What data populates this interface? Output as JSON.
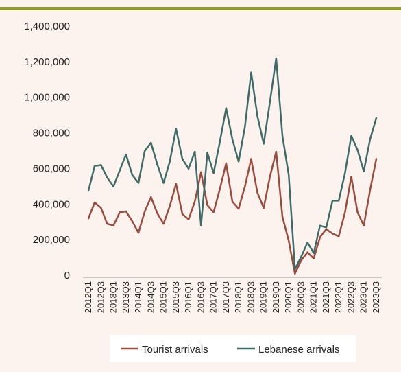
{
  "chart_data": {
    "type": "line",
    "title": "",
    "xlabel": "",
    "ylabel": "",
    "ylim": [
      0,
      1400000
    ],
    "yticks": [
      0,
      200000,
      400000,
      600000,
      800000,
      1000000,
      1200000,
      1400000
    ],
    "ytick_labels": [
      "0",
      "200,000",
      "400,000",
      "600,000",
      "800,000",
      "1,000,000",
      "1,200,000",
      "1,400,000"
    ],
    "grid": false,
    "legend_position": "bottom",
    "categories": [
      "2012Q1",
      "2012Q2",
      "2012Q3",
      "2012Q4",
      "2013Q1",
      "2013Q2",
      "2013Q3",
      "2013Q4",
      "2014Q1",
      "2014Q2",
      "2014Q3",
      "2014Q4",
      "2015Q1",
      "2015Q2",
      "2015Q3",
      "2015Q4",
      "2016Q1",
      "2016Q2",
      "2016Q3",
      "2016Q4",
      "2017Q1",
      "2017Q2",
      "2017Q3",
      "2017Q4",
      "2018Q1",
      "2018Q2",
      "2018Q3",
      "2018Q4",
      "2019Q1",
      "2019Q2",
      "2019Q3",
      "2019Q4",
      "2020Q1",
      "2020Q2",
      "2020Q3",
      "2020Q4",
      "2021Q1",
      "2021Q2",
      "2021Q3",
      "2021Q4",
      "2022Q1",
      "2022Q2",
      "2022Q3",
      "2022Q4",
      "2023Q1",
      "2023Q2",
      "2023Q3"
    ],
    "xtick_labels_shown": [
      "2012Q1",
      "2012Q3",
      "2013Q1",
      "2013Q3",
      "2014Q1",
      "2014Q3",
      "2015Q1",
      "2015Q3",
      "2016Q1",
      "2016Q3",
      "2017Q1",
      "2017Q3",
      "2018Q1",
      "2018Q3",
      "2019Q1",
      "2019Q3",
      "2020Q1",
      "2020Q3",
      "2021Q1",
      "2021Q3",
      "2022Q1",
      "2022Q3",
      "2023Q1",
      "2023Q3"
    ],
    "series": [
      {
        "name": "Tourist arrivals",
        "color": "#9b4a3c",
        "values": [
          315000,
          405000,
          375000,
          285000,
          275000,
          350000,
          355000,
          300000,
          235000,
          355000,
          435000,
          345000,
          285000,
          385000,
          510000,
          340000,
          310000,
          410000,
          575000,
          390000,
          350000,
          480000,
          625000,
          410000,
          370000,
          495000,
          650000,
          460000,
          375000,
          550000,
          690000,
          325000,
          190000,
          5000,
          80000,
          125000,
          90000,
          210000,
          255000,
          230000,
          215000,
          350000,
          550000,
          350000,
          275000,
          475000,
          650000
        ]
      },
      {
        "name": "Lebanese arrivals",
        "color": "#3d6b68",
        "values": [
          470000,
          610000,
          615000,
          545000,
          495000,
          585000,
          675000,
          560000,
          515000,
          695000,
          740000,
          620000,
          515000,
          635000,
          820000,
          650000,
          595000,
          690000,
          275000,
          685000,
          570000,
          745000,
          935000,
          760000,
          635000,
          830000,
          1135000,
          890000,
          735000,
          970000,
          1215000,
          780000,
          560000,
          30000,
          100000,
          180000,
          120000,
          275000,
          265000,
          415000,
          415000,
          570000,
          780000,
          700000,
          580000,
          760000,
          880000
        ]
      }
    ]
  }
}
